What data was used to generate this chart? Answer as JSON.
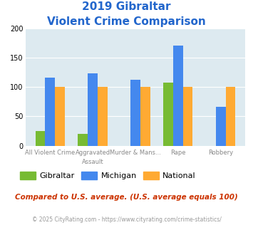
{
  "title_line1": "2019 Gibraltar",
  "title_line2": "Violent Crime Comparison",
  "gibraltar": [
    25,
    20,
    0,
    107,
    0
  ],
  "michigan": [
    116,
    123,
    112,
    171,
    66
  ],
  "national": [
    100,
    100,
    100,
    100,
    100
  ],
  "color_gibraltar": "#77bb33",
  "color_michigan": "#4488ee",
  "color_national": "#ffaa33",
  "ylim": [
    0,
    200
  ],
  "yticks": [
    0,
    50,
    100,
    150,
    200
  ],
  "bg_color": "#ddeaf0",
  "title_color": "#2266cc",
  "xlabel_top": [
    "",
    "Aggravated",
    "Murder & Mans...",
    "",
    ""
  ],
  "xlabel_bot": [
    "All Violent Crime",
    "Assault",
    "",
    "Rape",
    "Robbery"
  ],
  "legend_labels": [
    "Gibraltar",
    "Michigan",
    "National"
  ],
  "footnote1": "Compared to U.S. average. (U.S. average equals 100)",
  "footnote2": "© 2025 CityRating.com - https://www.cityrating.com/crime-statistics/",
  "footnote1_color": "#cc3300",
  "footnote2_color": "#999999",
  "footnote2_link_color": "#4488ee"
}
